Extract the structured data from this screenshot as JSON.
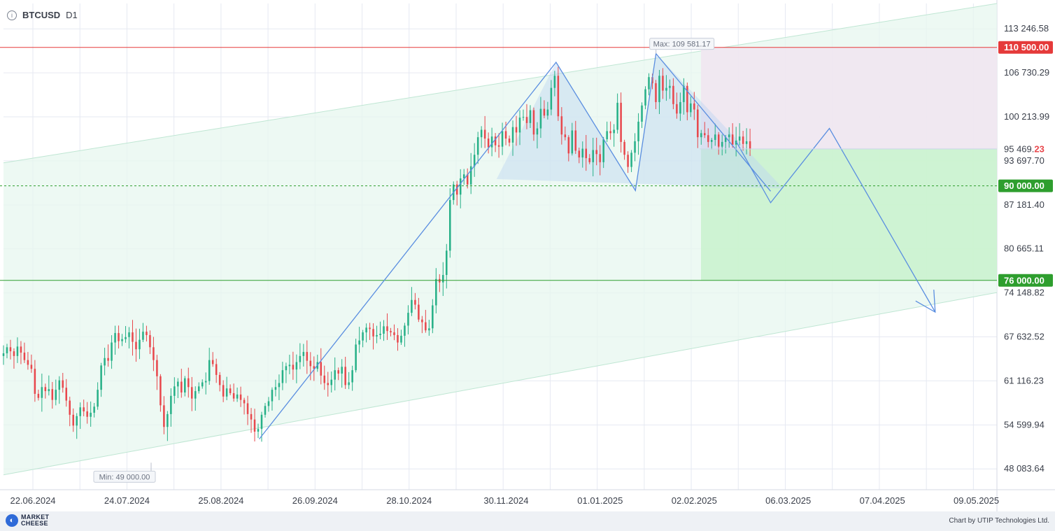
{
  "header": {
    "symbol": "BTCUSD",
    "timeframe": "D1",
    "info_icon": "info-icon"
  },
  "footer": {
    "logo_line1": "MARKET",
    "logo_line2": "CHEESE",
    "credit": "Chart by UTIP Technologies Ltd."
  },
  "colors": {
    "up_candle": "#26b087",
    "down_candle": "#e8474c",
    "resistance_line": "#e53a3a",
    "support_line": "#2e9e2e",
    "target_dashed": "#2e9e2e",
    "pattern_line": "#5a8ee0",
    "channel_fill": "#e7f7ef",
    "take_profit_zone": "#c8f2cc",
    "stop_loss_zone": "#efe6f1",
    "price_tag_current": "#e8474c"
  },
  "chart_data": {
    "type": "candlestick",
    "title": "BTCUSD D1",
    "ylim": [
      45000,
      117000
    ],
    "y_ticks": [
      "113 246.58",
      "106 730.29",
      "100 213.99",
      "93 697.70",
      "87 181.40",
      "80 665.11",
      "74 148.82",
      "67 632.52",
      "61 116.23",
      "54 599.94",
      "48 083.64"
    ],
    "x_ticks": [
      "22.06.2024",
      "24.07.2024",
      "25.08.2024",
      "26.09.2024",
      "28.10.2024",
      "30.11.2024",
      "01.01.2025",
      "02.02.2025",
      "06.03.2025",
      "07.04.2025",
      "09.05.2025"
    ],
    "price_levels": [
      {
        "label": "110 500.00",
        "value": 110500,
        "kind": "resistance"
      },
      {
        "label": "90 000.00",
        "value": 90000,
        "kind": "target-dashed"
      },
      {
        "label": "76 000.00",
        "value": 76000,
        "kind": "support"
      }
    ],
    "current_price": {
      "main": "95 469.",
      "last": "23",
      "value": 95469.23
    },
    "max_label": "Max: 109 581.17",
    "min_label": "Min: 49 000.00",
    "closes": [
      65200,
      66100,
      65500,
      64800,
      66200,
      65300,
      64200,
      63500,
      62900,
      59200,
      58600,
      60200,
      59600,
      59900,
      58300,
      59800,
      61200,
      60100,
      58200,
      56100,
      54500,
      55900,
      57200,
      56600,
      55800,
      56400,
      57300,
      59800,
      63400,
      64500,
      64100,
      66800,
      68200,
      67000,
      67300,
      67600,
      68300,
      66900,
      65800,
      67200,
      68400,
      67900,
      66100,
      64200,
      61800,
      57500,
      54300,
      56200,
      58900,
      60300,
      61000,
      59400,
      61500,
      60200,
      58500,
      59600,
      60300,
      60900,
      61100,
      64200,
      63600,
      62000,
      60500,
      58800,
      60000,
      59300,
      58500,
      59100,
      58300,
      57800,
      56200,
      55400,
      53600,
      54000,
      56100,
      57400,
      58100,
      59800,
      60200,
      60800,
      62700,
      63300,
      63500,
      62800,
      63900,
      64800,
      65400,
      64100,
      63300,
      62900,
      63900,
      61900,
      60800,
      60500,
      61300,
      62700,
      62200,
      63200,
      60500,
      60900,
      62700,
      66500,
      67100,
      68300,
      69000,
      68800,
      67700,
      67900,
      68100,
      69200,
      68500,
      68300,
      67900,
      66800,
      67800,
      69300,
      71200,
      73100,
      72400,
      70200,
      69800,
      68600,
      68900,
      72300,
      76200,
      75700,
      76800,
      80400,
      87900,
      90200,
      88700,
      91100,
      91700,
      90200,
      92900,
      94600,
      97200,
      98300,
      97000,
      95700,
      97300,
      96000,
      95800,
      98100,
      97000,
      96400,
      98700,
      97900,
      100100,
      100200,
      99300,
      101200,
      97600,
      98500,
      101400,
      100400,
      101300,
      104500,
      106300,
      100300,
      97600,
      97200,
      94800,
      98200,
      95200,
      94200,
      95500,
      94100,
      93500,
      95300,
      94700,
      93500,
      96900,
      98100,
      97800,
      98300,
      102300,
      96500,
      94600,
      92800,
      94900,
      96600,
      99500,
      101900,
      104300,
      106100,
      105200,
      102400,
      106300,
      104100,
      104500,
      104800,
      102100,
      100700,
      102400,
      104800,
      100900,
      102200,
      101300,
      97200,
      97800,
      97500,
      96500,
      96800,
      97600,
      95800,
      96500,
      97200,
      97600,
      96100,
      96700,
      97300,
      96200,
      96600,
      95469.23
    ],
    "double_top_pattern": [
      {
        "date": "2024-09-07",
        "price": 52500
      },
      {
        "date": "2024-12-17",
        "price": 108300
      },
      {
        "date": "2025-01-13",
        "price": 89300
      },
      {
        "date": "2025-01-20",
        "price": 109581.17
      },
      {
        "date": "2025-02-28",
        "price": 89200
      }
    ],
    "neckline_projection": [
      {
        "date": "2025-02-28",
        "price": 87500
      },
      {
        "date": "2025-03-20",
        "price": 98500
      },
      {
        "date": "2025-04-25",
        "price": 71300
      }
    ],
    "ascending_channel": {
      "upper": [
        {
          "date": "2024-06-12",
          "price": 93400
        },
        {
          "date": "2025-05-16",
          "price": 117000
        }
      ],
      "lower": [
        {
          "date": "2024-06-12",
          "price": 47200
        },
        {
          "date": "2025-05-16",
          "price": 74200
        }
      ]
    },
    "trade_zones": [
      {
        "kind": "stop-loss",
        "from_price": 95469.23,
        "to_price": 110500
      },
      {
        "kind": "take-profit",
        "from_price": 76000,
        "to_price": 95469.23
      }
    ]
  }
}
